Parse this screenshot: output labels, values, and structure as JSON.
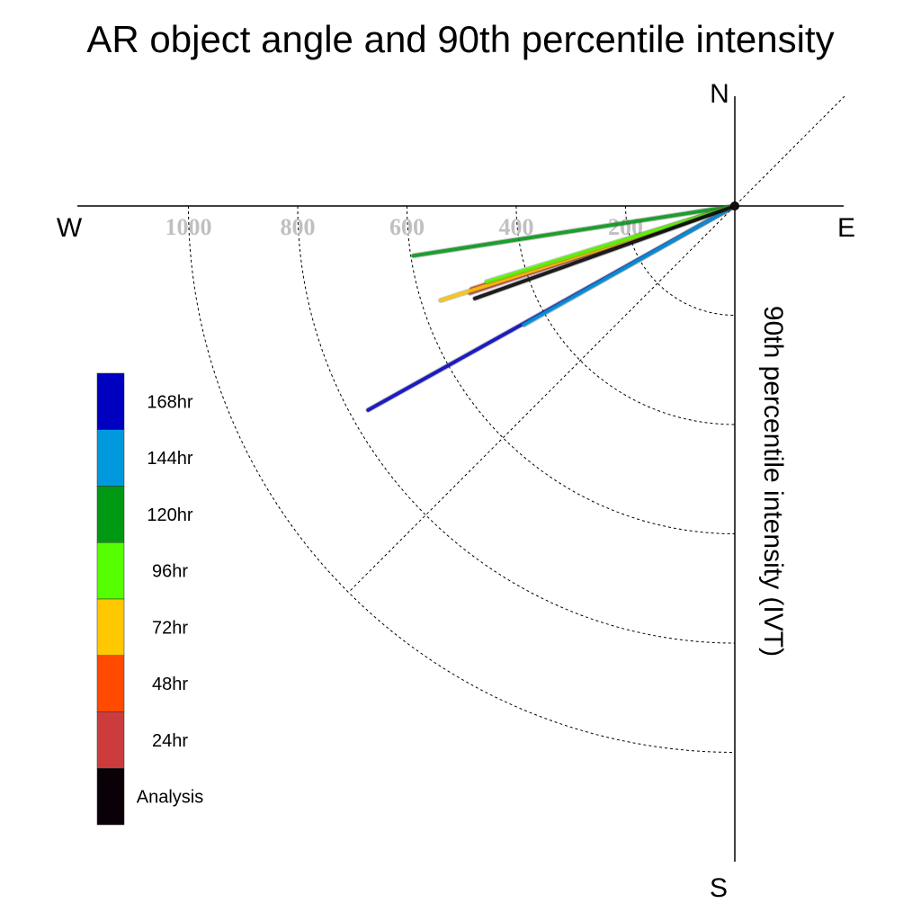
{
  "chart_data": {
    "type": "polar-vector",
    "title": "AR object angle and 90th percentile intensity",
    "ylabel": "90th percentile intensity (IVT)",
    "compass": {
      "N": "N",
      "E": "E",
      "S": "S",
      "W": "W"
    },
    "radial_ticks": [
      {
        "value": 200,
        "label": "200"
      },
      {
        "value": 400,
        "label": "400"
      },
      {
        "value": 600,
        "label": "600"
      },
      {
        "value": 800,
        "label": "800"
      },
      {
        "value": 1000,
        "label": "1000"
      }
    ],
    "radial_range": [
      0,
      1200
    ],
    "angle_reference": "angle measured clockwise from West toward South, in degrees",
    "series": [
      {
        "name": "Analysis",
        "color": "#000000",
        "x_intensity": 505,
        "angle_deg": 19.6
      },
      {
        "name": "24hr",
        "color": "#cc3c3c",
        "x_intensity": 510,
        "angle_deg": 18.2
      },
      {
        "name": "48hr",
        "color": "#ff4a00",
        "x_intensity": 505,
        "angle_deg": 17.5
      },
      {
        "name": "72hr",
        "color": "#ffc800",
        "x_intensity": 565,
        "angle_deg": 17.8
      },
      {
        "name": "96hr",
        "color": "#55ff00",
        "x_intensity": 475,
        "angle_deg": 17.0
      },
      {
        "name": "120hr",
        "color": "#009914",
        "x_intensity": 595,
        "angle_deg": 8.8
      },
      {
        "name": "144hr",
        "color": "#0099dd",
        "x_intensity": 443,
        "angle_deg": 29.4
      },
      {
        "name": "168hr",
        "color": "#0000c0",
        "x_intensity": 768,
        "angle_deg": 29.1
      }
    ],
    "legend": {
      "placement": "left",
      "entries": [
        {
          "label": "168hr",
          "color": "#0000c0"
        },
        {
          "label": "144hr",
          "color": "#0099dd"
        },
        {
          "label": "120hr",
          "color": "#009914"
        },
        {
          "label": "96hr",
          "color": "#55ff00"
        },
        {
          "label": "72hr",
          "color": "#ffc800"
        },
        {
          "label": "48hr",
          "color": "#ff4a00"
        },
        {
          "label": "24hr",
          "color": "#cc3c3c"
        },
        {
          "label": "Analysis",
          "color": "#0a0008"
        }
      ]
    }
  }
}
